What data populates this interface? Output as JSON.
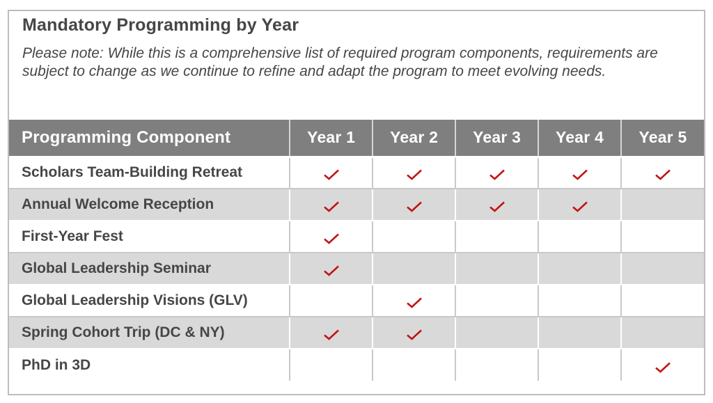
{
  "document": {
    "title": "Mandatory Programming by Year",
    "note": "Please note: While this is a comprehensive list of required program components, requirements are subject to change as we continue to refine and adapt the program to meet evolving needs."
  },
  "table": {
    "columns": [
      "Programming Component",
      "Year 1",
      "Year 2",
      "Year 3",
      "Year 4",
      "Year 5"
    ],
    "rows": [
      {
        "component": "Scholars Team-Building Retreat",
        "checks": [
          true,
          true,
          true,
          true,
          true
        ]
      },
      {
        "component": "Annual Welcome Reception",
        "checks": [
          true,
          true,
          true,
          true,
          false
        ]
      },
      {
        "component": "First-Year Fest",
        "checks": [
          true,
          false,
          false,
          false,
          false
        ]
      },
      {
        "component": "Global Leadership Seminar",
        "checks": [
          true,
          false,
          false,
          false,
          false
        ]
      },
      {
        "component": "Global Leadership Visions (GLV)",
        "checks": [
          false,
          true,
          false,
          false,
          false
        ]
      },
      {
        "component": "Spring Cohort Trip (DC & NY)",
        "checks": [
          true,
          true,
          false,
          false,
          false
        ]
      },
      {
        "component": "PhD in 3D",
        "checks": [
          false,
          false,
          false,
          false,
          true
        ]
      }
    ],
    "check_icon": "red-checkmark"
  },
  "colors": {
    "header_bg": "#7f7f7f",
    "header_text": "#ffffff",
    "row_alt_bg": "#d9d9d9",
    "check": "#c21414",
    "text": "#464646",
    "border": "#bdbdbd"
  }
}
